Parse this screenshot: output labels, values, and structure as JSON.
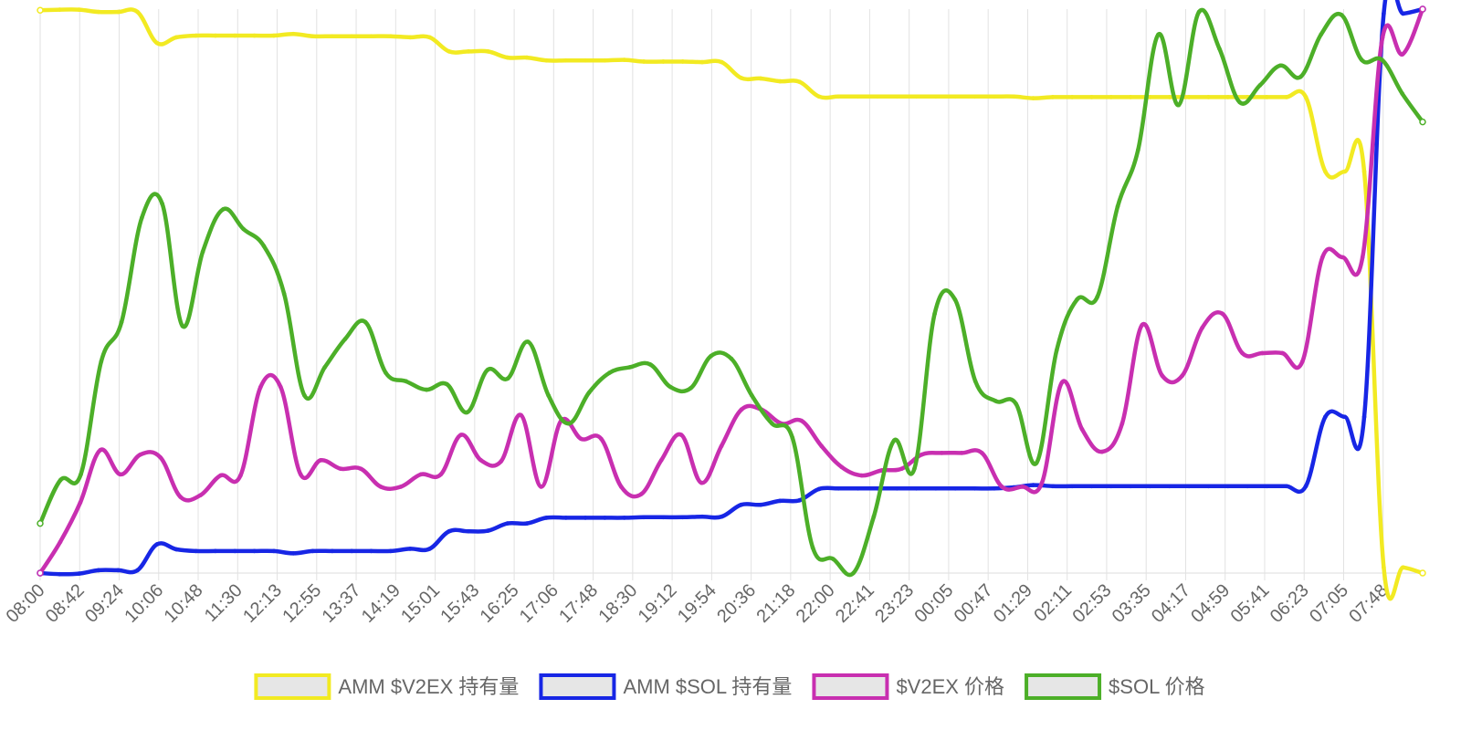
{
  "chart_data": {
    "type": "line",
    "title": "",
    "xlabel": "",
    "ylabel": "",
    "grid": true,
    "legend_position": "bottom",
    "x_ticks": [
      "08:00",
      "08:42",
      "09:24",
      "10:06",
      "10:48",
      "11:30",
      "12:13",
      "12:55",
      "13:37",
      "14:19",
      "15:01",
      "15:43",
      "16:25",
      "17:06",
      "17:48",
      "18:30",
      "19:12",
      "19:54",
      "20:36",
      "21:18",
      "22:00",
      "22:41",
      "23:23",
      "00:05",
      "00:47",
      "01:29",
      "02:11",
      "02:53",
      "03:35",
      "04:17",
      "04:59",
      "05:41",
      "06:23",
      "07:05",
      "07:48"
    ],
    "y_range": [
      0,
      100
    ],
    "series": [
      {
        "name": "AMM $V2EX 持有量",
        "color": "#f2ea22",
        "values": [
          99.8,
          99.9,
          99.9,
          99.5,
          99.5,
          99.5,
          94.0,
          95.0,
          95.3,
          95.3,
          95.3,
          95.3,
          95.3,
          95.6,
          95.2,
          95.2,
          95.2,
          95.2,
          95.2,
          95.0,
          95.0,
          92.5,
          92.5,
          92.5,
          91.4,
          91.4,
          90.9,
          90.9,
          90.9,
          90.9,
          91.0,
          90.7,
          90.7,
          90.7,
          90.6,
          90.6,
          87.8,
          87.7,
          87.2,
          87.1,
          84.5,
          84.5,
          84.5,
          84.5,
          84.5,
          84.5,
          84.5,
          84.5,
          84.5,
          84.5,
          84.5,
          84.2,
          84.4,
          84.4,
          84.4,
          84.4,
          84.4,
          84.4,
          84.4,
          84.4,
          84.4,
          84.4,
          84.4,
          84.4,
          84.4,
          84.4,
          71.2,
          71.2,
          71.2,
          1.0,
          1.0,
          0.0
        ]
      },
      {
        "name": "AMM $SOL 持有量",
        "color": "#1726e5",
        "values": [
          0.0,
          -0.2,
          -0.1,
          0.5,
          0.5,
          0.5,
          5.1,
          4.2,
          3.9,
          3.9,
          3.9,
          3.9,
          3.9,
          3.5,
          3.9,
          3.9,
          3.9,
          3.9,
          3.9,
          4.3,
          4.3,
          7.4,
          7.4,
          7.5,
          8.8,
          8.8,
          9.8,
          9.8,
          9.8,
          9.8,
          9.8,
          9.9,
          9.9,
          9.9,
          10.0,
          10.0,
          12.1,
          12.1,
          12.8,
          12.9,
          14.9,
          15.0,
          15.0,
          15.0,
          15.0,
          15.0,
          15.0,
          15.0,
          15.0,
          15.0,
          15.2,
          15.6,
          15.4,
          15.4,
          15.4,
          15.4,
          15.4,
          15.4,
          15.4,
          15.4,
          15.4,
          15.4,
          15.4,
          15.4,
          15.4,
          15.4,
          27.7,
          27.7,
          27.7,
          99.2,
          99.2,
          100.0
        ]
      },
      {
        "name": "$V2EX 价格",
        "color": "#c82fb0",
        "values": [
          0.0,
          5.5,
          12.5,
          21.8,
          17.5,
          21.0,
          20.5,
          13.5,
          13.8,
          17.3,
          17.3,
          33.0,
          33.0,
          17.5,
          20.0,
          18.5,
          18.5,
          15.3,
          15.3,
          17.5,
          17.5,
          24.5,
          20.0,
          19.8,
          28.0,
          15.3,
          27.0,
          23.8,
          23.8,
          15.3,
          14.0,
          20.0,
          24.5,
          16.0,
          22.5,
          29.0,
          29.0,
          26.5,
          27.0,
          22.5,
          18.8,
          17.3,
          18.2,
          18.5,
          21.0,
          21.3,
          21.3,
          21.3,
          15.3,
          15.3,
          16.0,
          33.8,
          25.5,
          21.5,
          26.5,
          44.0,
          35.0,
          35.0,
          43.5,
          46.0,
          39.0,
          39.0,
          39.0,
          37.5,
          56.0,
          56.0,
          56.0,
          95.0,
          92.0,
          100.0
        ]
      },
      {
        "name": "$SOL 价格",
        "color": "#4caf28",
        "values": [
          8.8,
          16.5,
          17.5,
          37.5,
          44.5,
          63.0,
          65.5,
          43.8,
          57.0,
          64.5,
          61.0,
          58.0,
          49.5,
          31.5,
          36.5,
          41.5,
          44.5,
          35.5,
          34.0,
          32.5,
          33.5,
          28.5,
          36.0,
          34.5,
          41.0,
          31.5,
          26.5,
          32.0,
          35.5,
          36.5,
          37.0,
          33.0,
          32.8,
          38.5,
          38.0,
          31.5,
          26.5,
          24.0,
          4.5,
          2.5,
          0.0,
          10.0,
          23.5,
          18.5,
          46.0,
          48.5,
          34.0,
          30.5,
          30.0,
          19.5,
          39.5,
          48.5,
          49.0,
          65.0,
          75.0,
          95.5,
          83.0,
          99.5,
          93.0,
          83.5,
          86.5,
          90.0,
          88.0,
          95.5,
          99.0,
          91.0,
          91.0,
          85.0,
          80.0
        ]
      }
    ]
  }
}
